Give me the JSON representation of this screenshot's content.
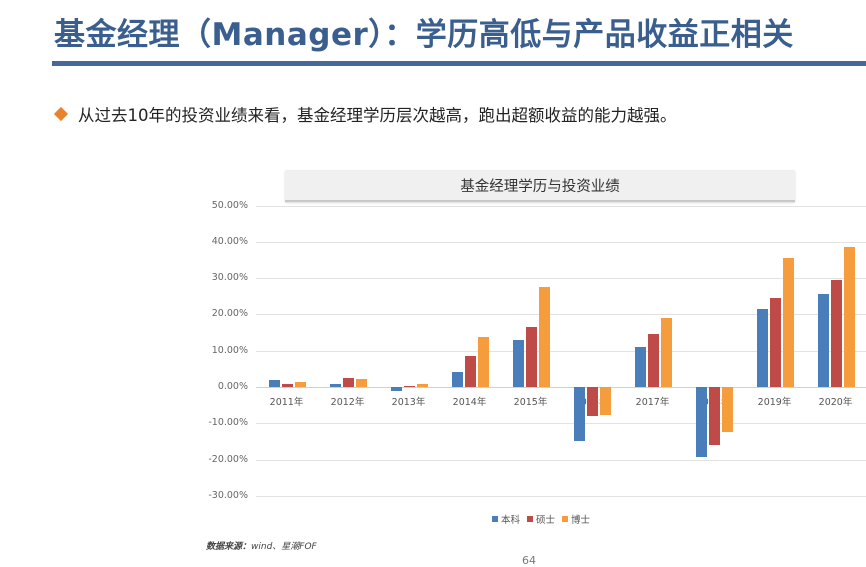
{
  "header": {
    "title": "基金经理（Manager）：学历高低与产品收益正相关"
  },
  "bullet": {
    "icon": "diamond-icon",
    "text": "从过去10年的投资业绩来看，基金经理学历层次越高，跑出超额收益的能力越强。"
  },
  "footer": {
    "source_label": "数据来源：",
    "source_value": "wind、星潮FOF",
    "page_number": "64"
  },
  "colors": {
    "title": "#3a5f8f",
    "rule": "#46699a",
    "bullet": "#e9822d",
    "series_bachelor": "#4a7ebb",
    "series_master": "#be4b48",
    "series_phd": "#f59d3d"
  },
  "chart_data": {
    "type": "bar",
    "title": "基金经理学历与投资业绩",
    "xlabel": "",
    "ylabel": "",
    "ylim": [
      -30,
      50
    ],
    "yticks": [
      "50.00%",
      "40.00%",
      "30.00%",
      "20.00%",
      "10.00%",
      "0.00%",
      "-10.00%",
      "-20.00%",
      "-30.00%"
    ],
    "grid": true,
    "legend_position": "bottom",
    "categories": [
      "2011年",
      "2012年",
      "2013年",
      "2014年",
      "2015年",
      "2016年",
      "2017年",
      "2018年",
      "2019年",
      "2020年"
    ],
    "series": [
      {
        "name": "本科",
        "color": "#4a7ebb",
        "values": [
          1.9,
          0.7,
          -1.1,
          4.2,
          12.9,
          -14.8,
          11.1,
          -19.2,
          21.4,
          25.6
        ]
      },
      {
        "name": "硕士",
        "color": "#be4b48",
        "values": [
          0.9,
          2.5,
          0.4,
          8.5,
          16.6,
          -7.9,
          14.6,
          -16.1,
          24.5,
          29.5
        ]
      },
      {
        "name": "博士",
        "color": "#f59d3d",
        "values": [
          1.3,
          2.1,
          0.7,
          13.7,
          27.5,
          -7.7,
          18.9,
          -12.4,
          35.4,
          38.5
        ]
      }
    ]
  }
}
